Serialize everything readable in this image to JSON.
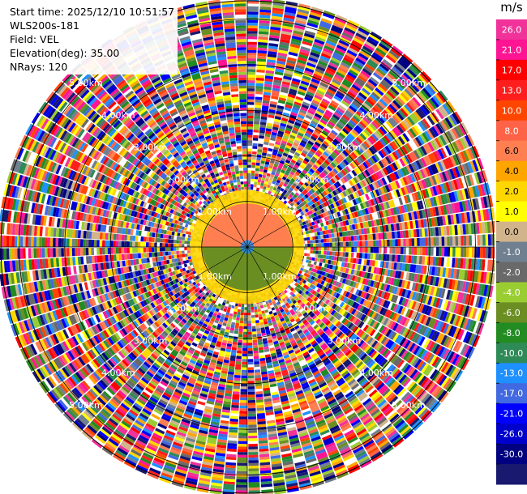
{
  "header": {
    "start_time": "Start time: 2025/12/10 10:51:57",
    "instrument": "WLS200s-181",
    "field": "Field: VEL",
    "elevation": "Elevation(deg): 35.00",
    "nrays": "NRays: 120"
  },
  "chart_data": {
    "type": "heatmap",
    "subtype": "polar-ppi",
    "field": "VEL",
    "elevation_deg": 35.0,
    "n_rays": 120,
    "max_range_km": 5.4,
    "range_rings_km": [
      1.0,
      2.0,
      3.0,
      4.0,
      5.0
    ],
    "ring_labels": [
      "1.00km",
      "2.00km",
      "3.00km",
      "4.00km",
      "5.00km"
    ],
    "colorbar": {
      "unit": "m/s",
      "tick_labels": [
        "26.0",
        "21.0",
        "17.0",
        "13.0",
        "10.0",
        "8.0",
        "6.0",
        "4.0",
        "2.0",
        "1.0",
        "0.0",
        "-1.0",
        "-2.0",
        "-4.0",
        "-6.0",
        "-8.0",
        "-10.0",
        "-13.0",
        "-17.0",
        "-21.0",
        "-26.0",
        "-30.0"
      ],
      "colors": [
        "#f0329a",
        "#ff1493",
        "#ff0000",
        "#ff1e1e",
        "#ff4500",
        "#ff6347",
        "#ff7f50",
        "#ffa500",
        "#ffd700",
        "#ffff00",
        "#d2b48c",
        "#708090",
        "#696969",
        "#9acd32",
        "#6b8e23",
        "#228b22",
        "#2e8b57",
        "#1e90ff",
        "#4169e1",
        "#0000ff",
        "#0000cd",
        "#000080",
        "#191970"
      ]
    },
    "near_field": {
      "range_km": [
        0.3,
        1.6
      ],
      "approaching_color": "#6b8e23",
      "receding_color": "#ff7f50",
      "fringe_color": "#ffd700"
    }
  }
}
